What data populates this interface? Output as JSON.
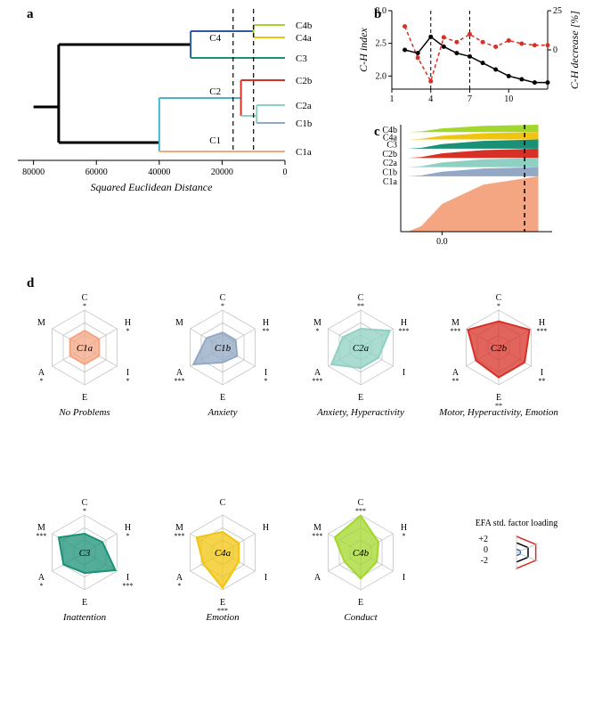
{
  "panels": {
    "a": "a",
    "b": "b",
    "c": "c",
    "d": "d"
  },
  "colors": {
    "C1a": "#f4a582",
    "C1b": "#92a8c4",
    "C2a": "#8fd0c3",
    "C2b": "#d73027",
    "C3": "#1a9177",
    "C4a": "#f1c40f",
    "C4b": "#a3d72b",
    "black": "#000000",
    "red_dash": "#d73027",
    "blue_leg": "#2b5aa0"
  },
  "dendrogram": {
    "x_axis_label": "Squared Euclidean Distance",
    "x_ticks": [
      80000,
      60000,
      40000,
      20000,
      0
    ],
    "cut_lines": [
      16500,
      10000
    ],
    "leaves_top_to_bottom": [
      "C4b",
      "C4a",
      "C3",
      "C2b",
      "C2a",
      "C1b",
      "C1a"
    ],
    "internal_labels": {
      "C1": "C1",
      "C2": "C2",
      "C4": "C4"
    },
    "branches": [
      {
        "from": [
          80000,
          110
        ],
        "to": [
          72000,
          110
        ],
        "color": "#000000",
        "w": 3
      },
      {
        "from": [
          72000,
          40
        ],
        "to": [
          72000,
          150
        ],
        "color": "#000000",
        "w": 3
      },
      {
        "from": [
          72000,
          40
        ],
        "to": [
          30000,
          40
        ],
        "color": "#000000",
        "w": 3
      },
      {
        "from": [
          30000,
          25
        ],
        "to": [
          30000,
          55
        ],
        "color": "#2b5aa0",
        "w": 2
      },
      {
        "from": [
          30000,
          25
        ],
        "to": [
          10000,
          25
        ],
        "color": "#2b5aa0",
        "w": 2
      },
      {
        "from": [
          10000,
          18
        ],
        "to": [
          10000,
          32
        ],
        "color": "#a3d72b",
        "w": 2
      },
      {
        "from": [
          10000,
          18
        ],
        "to": [
          0,
          18
        ],
        "color": "#a3d72b",
        "w": 2
      },
      {
        "from": [
          10000,
          32
        ],
        "to": [
          0,
          32
        ],
        "color": "#f1c40f",
        "w": 2
      },
      {
        "from": [
          30000,
          55
        ],
        "to": [
          0,
          55
        ],
        "color": "#1a9177",
        "w": 2
      },
      {
        "from": [
          72000,
          150
        ],
        "to": [
          40000,
          150
        ],
        "color": "#000000",
        "w": 3
      },
      {
        "from": [
          40000,
          100
        ],
        "to": [
          40000,
          160
        ],
        "color": "#4bb3c8",
        "w": 2
      },
      {
        "from": [
          40000,
          100
        ],
        "to": [
          14000,
          100
        ],
        "color": "#4bb3c8",
        "w": 2
      },
      {
        "from": [
          14000,
          80
        ],
        "to": [
          14000,
          120
        ],
        "color": "#d73027",
        "w": 2
      },
      {
        "from": [
          14000,
          80
        ],
        "to": [
          0,
          80
        ],
        "color": "#d73027",
        "w": 2
      },
      {
        "from": [
          14000,
          120
        ],
        "to": [
          9000,
          120
        ],
        "color": "#8fd0c3",
        "w": 2
      },
      {
        "from": [
          9000,
          108
        ],
        "to": [
          9000,
          128
        ],
        "color": "#8fd0c3",
        "w": 2
      },
      {
        "from": [
          9000,
          108
        ],
        "to": [
          0,
          108
        ],
        "color": "#8fd0c3",
        "w": 2
      },
      {
        "from": [
          9000,
          128
        ],
        "to": [
          0,
          128
        ],
        "color": "#92a8c4",
        "w": 2
      },
      {
        "from": [
          40000,
          160
        ],
        "to": [
          0,
          160
        ],
        "color": "#f4a582",
        "w": 2
      }
    ],
    "leaf_y": {
      "C4b": 18,
      "C4a": 32,
      "C3": 55,
      "C2b": 80,
      "C2a": 108,
      "C1b": 128,
      "C1a": 160
    },
    "internal_pos": {
      "C4": [
        24000,
        40
      ],
      "C2": [
        24000,
        100
      ],
      "C1": [
        24000,
        155
      ]
    }
  },
  "panel_b": {
    "y_left_label": "C-H index",
    "y_right_label": "C-H decrease [%]",
    "x_ticks": [
      1,
      4,
      7,
      10
    ],
    "y_left_range": [
      1.8,
      3.0
    ],
    "y_left_ticks": [
      2.0,
      2.5,
      3.0
    ],
    "y_right_range": [
      -25,
      25
    ],
    "y_right_ticks": [
      0,
      25
    ],
    "vlines": [
      4,
      7
    ],
    "series_black": [
      [
        1,
        null
      ],
      [
        2,
        2.4
      ],
      [
        3,
        2.35
      ],
      [
        4,
        2.6
      ],
      [
        5,
        2.45
      ],
      [
        6,
        2.35
      ],
      [
        7,
        2.3
      ],
      [
        8,
        2.2
      ],
      [
        9,
        2.1
      ],
      [
        10,
        2.0
      ],
      [
        11,
        1.95
      ],
      [
        12,
        1.9
      ],
      [
        13,
        1.9
      ]
    ],
    "series_red": [
      [
        1,
        null
      ],
      [
        2,
        15
      ],
      [
        3,
        -5
      ],
      [
        4,
        -20
      ],
      [
        5,
        8
      ],
      [
        6,
        5
      ],
      [
        7,
        10
      ],
      [
        8,
        5
      ],
      [
        9,
        2
      ],
      [
        10,
        6
      ],
      [
        11,
        4
      ],
      [
        12,
        3
      ],
      [
        13,
        3
      ]
    ]
  },
  "panel_c": {
    "labels_top_to_bottom": [
      "C4b",
      "C4a",
      "C3",
      "C2b",
      "C2a",
      "C1b",
      "C1a"
    ],
    "x_ticks": [
      0.0
    ],
    "vline": 0.6,
    "xlim": [
      -0.3,
      0.8
    ],
    "band_heights": [
      8,
      8,
      10,
      10,
      10,
      10,
      60
    ],
    "band_colors": [
      "#a3d72b",
      "#f1c40f",
      "#1a9177",
      "#d73027",
      "#8fd0c3",
      "#92a8c4",
      "#f4a582"
    ]
  },
  "radars": [
    {
      "id": "C1a",
      "title": "C1a",
      "caption": "No Problems",
      "color": "#f4a582",
      "values": {
        "C": 0.45,
        "H": 0.45,
        "I": 0.45,
        "E": 0.45,
        "A": 0.45,
        "M": 0.45
      },
      "sig": {
        "C": "*",
        "H": "*",
        "I": "*",
        "E": "",
        "A": "*",
        "M": ""
      }
    },
    {
      "id": "C1b",
      "title": "C1b",
      "caption": "Anxiety",
      "color": "#92a8c4",
      "values": {
        "C": 0.4,
        "H": 0.4,
        "I": 0.45,
        "E": 0.4,
        "A": 0.9,
        "M": 0.5
      },
      "sig": {
        "C": "*",
        "H": "**",
        "I": "*",
        "E": "",
        "A": "***",
        "M": ""
      }
    },
    {
      "id": "C2a",
      "title": "C2a",
      "caption": "Anxiety, Hyperactivity",
      "color": "#8fd0c3",
      "values": {
        "C": 0.5,
        "H": 0.9,
        "I": 0.55,
        "E": 0.55,
        "A": 0.9,
        "M": 0.55
      },
      "sig": {
        "C": "**",
        "H": "***",
        "I": "",
        "E": "",
        "A": "***",
        "M": "*"
      }
    },
    {
      "id": "C2b",
      "title": "C2b",
      "caption": "Motor, Hyperactivity, Emotion",
      "color": "#d73027",
      "values": {
        "C": 0.7,
        "H": 0.95,
        "I": 0.8,
        "E": 0.8,
        "A": 0.7,
        "M": 0.95
      },
      "sig": {
        "C": "*",
        "H": "***",
        "I": "**",
        "E": "**",
        "A": "**",
        "M": "***"
      }
    },
    {
      "id": "C3",
      "title": "C3",
      "caption": "Inattention",
      "color": "#1a9177",
      "values": {
        "C": 0.5,
        "H": 0.55,
        "I": 0.95,
        "E": 0.55,
        "A": 0.65,
        "M": 0.8
      },
      "sig": {
        "C": "*",
        "H": "*",
        "I": "***",
        "E": "",
        "A": "*",
        "M": "***"
      }
    },
    {
      "id": "C4a",
      "title": "C4a",
      "caption": "Emotion",
      "color": "#f1c40f",
      "values": {
        "C": 0.55,
        "H": 0.5,
        "I": 0.5,
        "E": 0.95,
        "A": 0.6,
        "M": 0.8
      },
      "sig": {
        "C": "",
        "H": "",
        "I": "",
        "E": "***",
        "A": "*",
        "M": "***"
      }
    },
    {
      "id": "C4b",
      "title": "C4b",
      "caption": "Conduct",
      "color": "#a3d72b",
      "values": {
        "C": 0.98,
        "H": 0.55,
        "I": 0.5,
        "E": 0.7,
        "A": 0.5,
        "M": 0.8
      },
      "sig": {
        "C": "***",
        "H": "*",
        "I": "",
        "E": "",
        "A": "",
        "M": "***"
      }
    }
  ],
  "legend": {
    "title": "EFA std. factor loading",
    "levels": [
      "+2",
      "0",
      "-2"
    ]
  }
}
